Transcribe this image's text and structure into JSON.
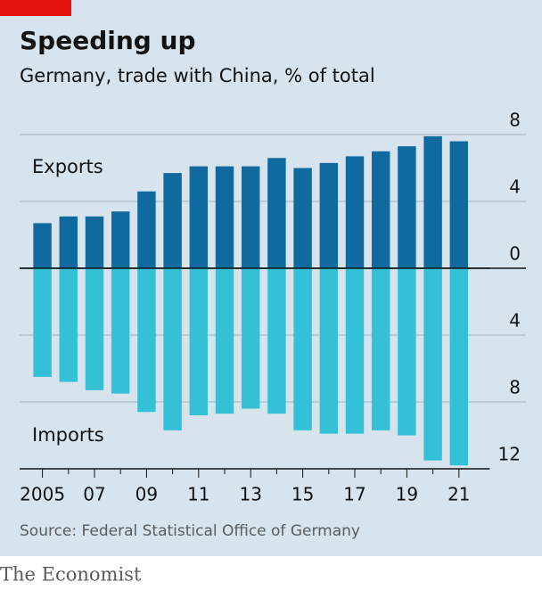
{
  "chart_data": {
    "type": "diverging_bar",
    "title": "Speeding up",
    "subtitle": "Germany, trade with China, % of total",
    "categories": [
      "2005",
      null,
      "07",
      null,
      "09",
      null,
      "11",
      null,
      "13",
      null,
      "15",
      null,
      "17",
      null,
      "19",
      null,
      "21"
    ],
    "series": [
      {
        "name": "Exports",
        "color": "#10699f",
        "values": [
          2.7,
          3.1,
          3.1,
          3.4,
          4.6,
          5.7,
          6.1,
          6.1,
          6.1,
          6.6,
          6.0,
          6.3,
          6.7,
          7.0,
          7.3,
          7.9,
          7.6
        ]
      },
      {
        "name": "Imports",
        "color": "#34c0d6",
        "values": [
          -6.5,
          -6.8,
          -7.3,
          -7.5,
          -8.6,
          -9.7,
          -8.8,
          -8.7,
          -8.4,
          -8.7,
          -9.7,
          -9.9,
          -9.9,
          -9.7,
          -10.0,
          -11.5,
          -11.8
        ]
      }
    ],
    "ylim": [
      -12,
      8
    ],
    "yticks": [
      8,
      4,
      0,
      {
        "value": -4,
        "label": "4"
      },
      {
        "value": -8,
        "label": "8"
      },
      {
        "value": -12,
        "label": "12"
      }
    ],
    "grid": true,
    "source": "Source: Federal Statistical Office of Germany",
    "publisher": "The Economist"
  }
}
